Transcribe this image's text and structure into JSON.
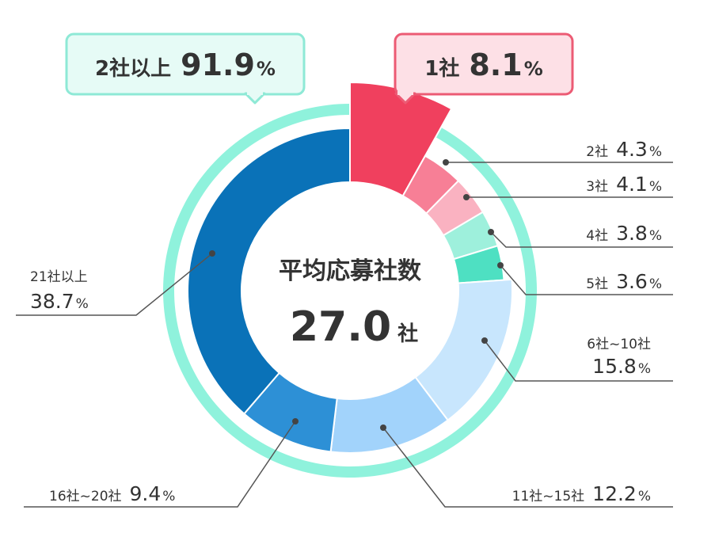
{
  "chart_data": {
    "type": "pie",
    "title": "",
    "center": {
      "title": "平均応募社数",
      "value": "27.0",
      "unit": "社"
    },
    "groups": [
      {
        "label": "1社",
        "value": 8.1,
        "unit": "%",
        "color": "#f0405e",
        "border": "#ec5b74",
        "fill": "#fde0e6"
      },
      {
        "label": "2社以上",
        "value": 91.9,
        "unit": "%",
        "color": "#8ff2dc",
        "border": "#8ee9d6",
        "fill": "#e6fbf6"
      }
    ],
    "slices": [
      {
        "label": "1社",
        "value": 8.1,
        "unit": "%",
        "color": "#f0405e"
      },
      {
        "label": "2社",
        "value": 4.3,
        "unit": "%",
        "color": "#f77f96"
      },
      {
        "label": "3社",
        "value": 4.1,
        "unit": "%",
        "color": "#fab2c1"
      },
      {
        "label": "4社",
        "value": 3.8,
        "unit": "%",
        "color": "#9ef0dc"
      },
      {
        "label": "5社",
        "value": 3.6,
        "unit": "%",
        "color": "#4ee0c2"
      },
      {
        "label": "6社~10社",
        "value": 15.8,
        "unit": "%",
        "color": "#c8e6fd"
      },
      {
        "label": "11社~15社",
        "value": 12.2,
        "unit": "%",
        "color": "#a2d3fb"
      },
      {
        "label": "16社~20社",
        "value": 9.4,
        "unit": "%",
        "color": "#2d90d6"
      },
      {
        "label": "21社以上",
        "value": 38.7,
        "unit": "%",
        "color": "#0a72b8"
      }
    ]
  }
}
